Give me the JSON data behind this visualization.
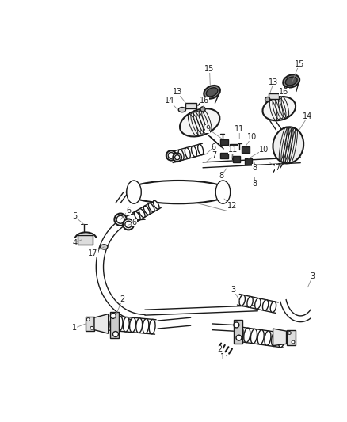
{
  "background_color": "#ffffff",
  "fig_width": 4.38,
  "fig_height": 5.33,
  "dpi": 100,
  "line_color": "#1a1a1a",
  "label_color": "#222222",
  "label_fontsize": 7.0,
  "arrow_color": "#888888"
}
